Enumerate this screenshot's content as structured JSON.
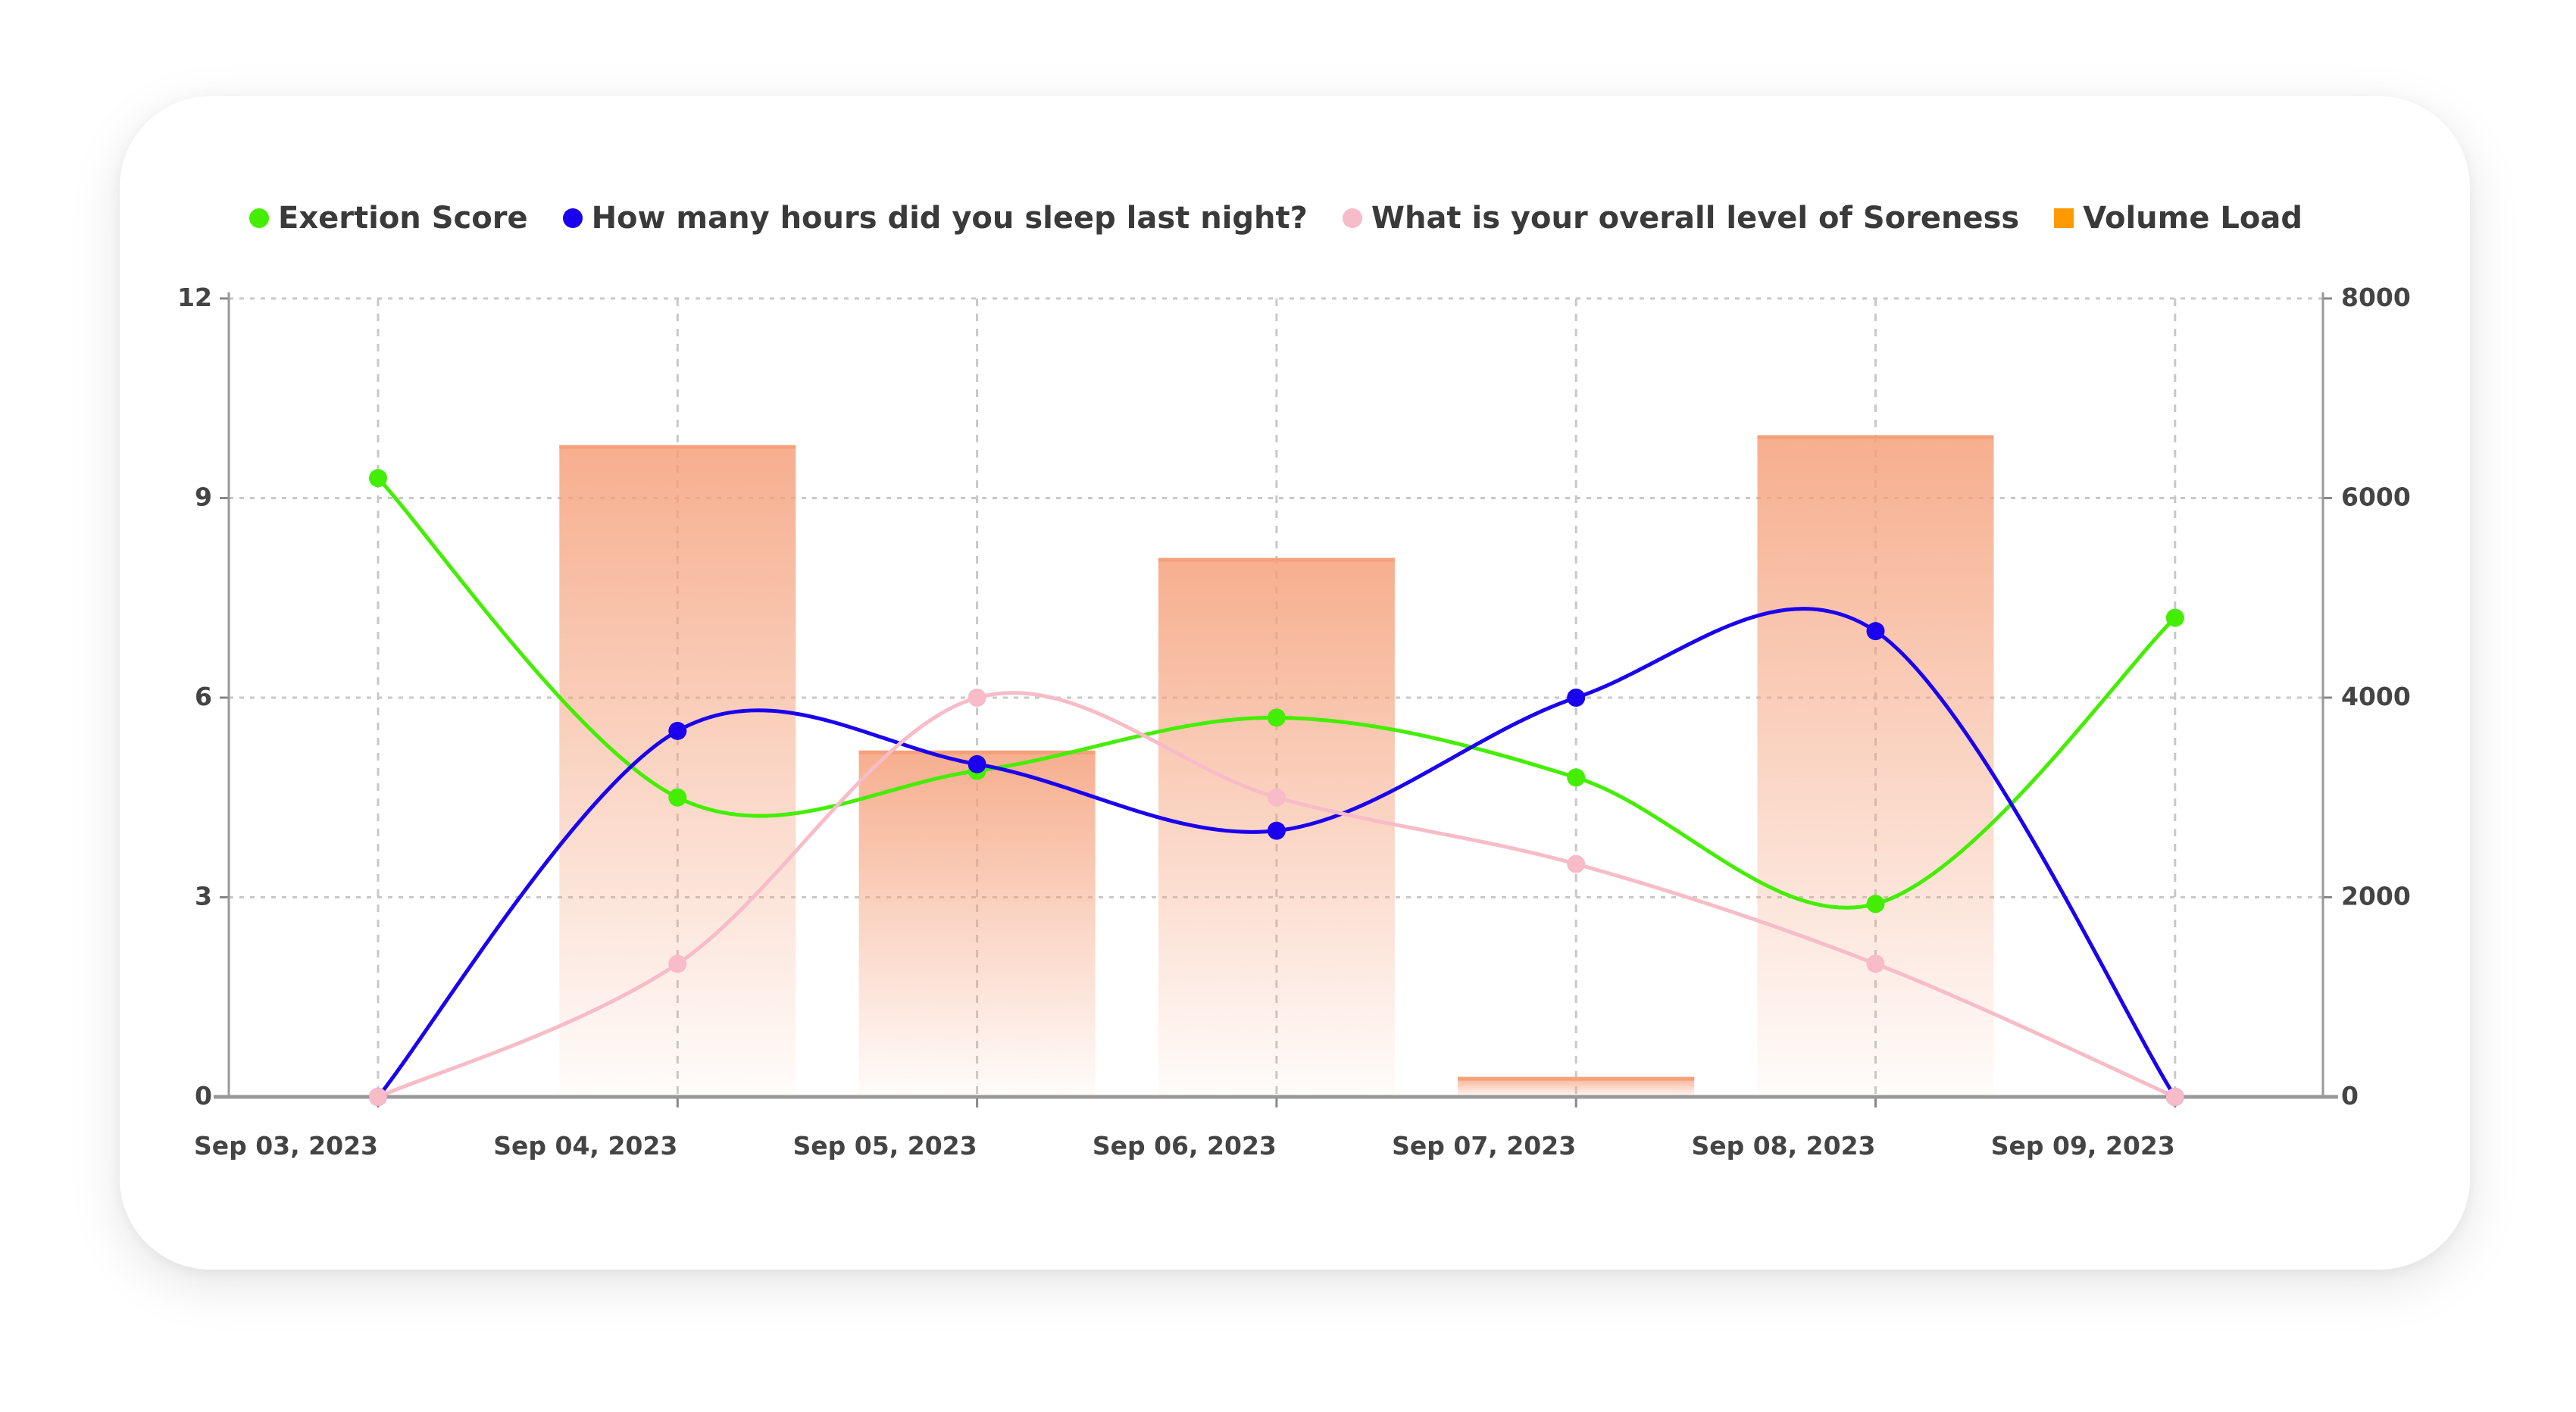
{
  "chart_data": {
    "type": "bar+line",
    "categories": [
      "Sep 03, 2023",
      "Sep 04, 2023",
      "Sep 05, 2023",
      "Sep 06, 2023",
      "Sep 07, 2023",
      "Sep 08, 2023",
      "Sep 09, 2023"
    ],
    "y_left": {
      "range": [
        0,
        12
      ],
      "ticks": [
        "0",
        "3",
        "6",
        "9",
        "12"
      ]
    },
    "y_right": {
      "range": [
        0,
        8000
      ],
      "ticks": [
        "0",
        "2000",
        "4000",
        "6000",
        "8000"
      ]
    },
    "grid": true,
    "legend_placement": "top-center",
    "series": [
      {
        "name": "Exertion Score",
        "type": "line",
        "axis": "left",
        "color": "#44ee00",
        "values": [
          9.3,
          4.5,
          4.9,
          5.7,
          4.8,
          2.9,
          7.2
        ]
      },
      {
        "name": "How many hours did you sleep last night?",
        "type": "line",
        "axis": "left",
        "color": "#1a00ee",
        "values": [
          0,
          5.5,
          5,
          4,
          6,
          7,
          0
        ]
      },
      {
        "name": "What is your overall level of Soreness",
        "type": "line",
        "axis": "left",
        "color": "#f7bcc8",
        "values": [
          0,
          2,
          6,
          4.5,
          3.5,
          2,
          0
        ]
      },
      {
        "name": "Volume Load",
        "type": "bar",
        "axis": "right",
        "color": "#f5a07a",
        "legend_color": "#ff9900",
        "values": [
          0,
          6530,
          3470,
          5400,
          200,
          6630,
          0
        ]
      }
    ]
  }
}
